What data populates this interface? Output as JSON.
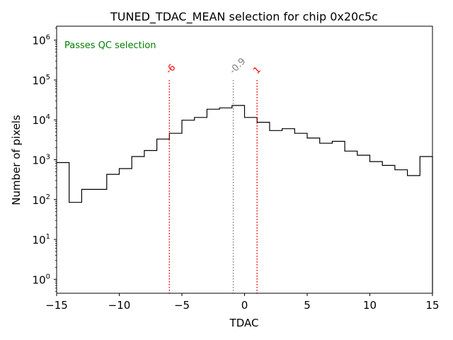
{
  "chart_data": {
    "type": "histogram",
    "title": "TUNED_TDAC_MEAN selection for chip 0x20c5c",
    "xlabel": "TDAC",
    "ylabel": "Number of pixels",
    "xlim": [
      -15,
      15
    ],
    "ylim_log10": [
      -0.35,
      6.35
    ],
    "yscale": "log",
    "x_ticks": [
      -15,
      -10,
      -5,
      0,
      5,
      10,
      15
    ],
    "x_tick_labels": [
      "−15",
      "−10",
      "−5",
      "0",
      "5",
      "10",
      "15"
    ],
    "y_ticks_exp": [
      0,
      1,
      2,
      3,
      4,
      5,
      6
    ],
    "y_tick_base": "10",
    "bin_edges": [
      -15,
      -14,
      -13,
      -12,
      -11,
      -10,
      -9,
      -8,
      -7,
      -6,
      -5,
      -4,
      -3,
      -2,
      -1,
      0,
      1,
      2,
      3,
      4,
      5,
      6,
      7,
      8,
      9,
      10,
      11,
      12,
      13,
      14,
      15
    ],
    "counts": [
      850,
      85,
      180,
      180,
      430,
      600,
      1200,
      1700,
      3300,
      4600,
      9800,
      11500,
      18500,
      20000,
      23000,
      11500,
      8700,
      5400,
      6000,
      4600,
      3500,
      2600,
      2900,
      1650,
      1300,
      900,
      720,
      560,
      400,
      1200
    ],
    "cut_lines": [
      {
        "x": -6,
        "label": "-6",
        "color": "#ff0000"
      },
      {
        "x": -0.9,
        "label": "-0.9",
        "color": "#808080"
      },
      {
        "x": 1,
        "label": "1",
        "color": "#ff0000"
      }
    ],
    "status_text": "Passes QC selection",
    "status_color": "#008000"
  }
}
